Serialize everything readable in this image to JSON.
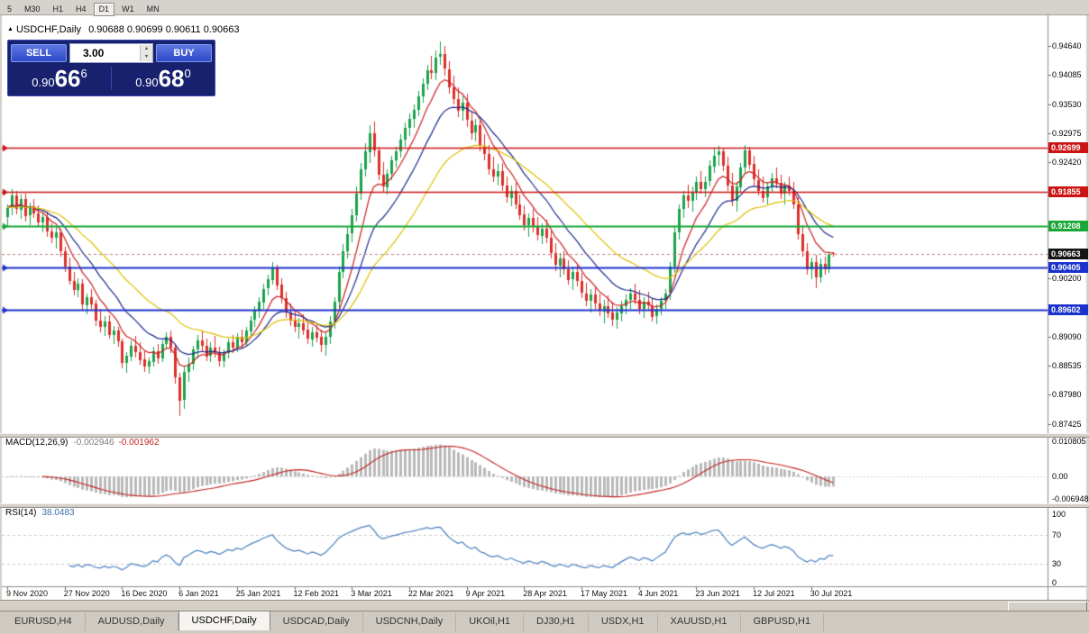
{
  "toolbar": {
    "timeframes": [
      "5",
      "M30",
      "H1",
      "H4",
      "D1",
      "W1",
      "MN"
    ],
    "active": "D1"
  },
  "window": {
    "title_icon": "▲",
    "title_symbol": "USDCHF,Daily",
    "title_ohlc": "0.90688 0.90699 0.90611 0.90663"
  },
  "trade_panel": {
    "sell_label": "SELL",
    "buy_label": "BUY",
    "volume": "3.00",
    "sell_price": {
      "prefix": "0.90",
      "big": "66",
      "pip": "6"
    },
    "buy_price": {
      "prefix": "0.90",
      "big": "68",
      "pip": "0"
    }
  },
  "indicators": {
    "macd": {
      "label": "MACD(12,26,9)",
      "main_value": "-0.002946",
      "signal_value": "-0.001962",
      "axis_labels": [
        "0.010805",
        "0.00",
        "-0.006948"
      ],
      "axis_values": [
        0.010805,
        0,
        -0.006948
      ]
    },
    "rsi": {
      "label": "RSI(14)",
      "value": "38.0483",
      "axis_labels": [
        "100",
        "70",
        "30",
        "0"
      ],
      "axis_values": [
        100,
        70,
        30,
        0
      ],
      "levels": [
        70,
        30
      ]
    }
  },
  "tabs": [
    "EURUSD,H4",
    "AUDUSD,Daily",
    "USDCHF,Daily",
    "USDCAD,Daily",
    "USDCNH,Daily",
    "UKOil,H1",
    "DJ30,H1",
    "USDX,H1",
    "XAUUSD,H1",
    "GBPUSD,H1"
  ],
  "active_tab": "USDCHF,Daily",
  "chart_data": {
    "type": "candlestick",
    "symbol": "USDCHF",
    "timeframe": "Daily",
    "x_labels": [
      "9 Nov 2020",
      "27 Nov 2020",
      "16 Dec 2020",
      "6 Jan 2021",
      "25 Jan 2021",
      "12 Feb 2021",
      "3 Mar 2021",
      "22 Mar 2021",
      "9 Apr 2021",
      "28 Apr 2021",
      "17 May 2021",
      "4 Jun 2021",
      "23 Jun 2021",
      "12 Jul 2021",
      "30 Jul 2021"
    ],
    "label_step": 13,
    "price_axis_labels": [
      {
        "text": "0.94640",
        "value": 0.9464
      },
      {
        "text": "0.94085",
        "value": 0.94085
      },
      {
        "text": "0.93530",
        "value": 0.9353
      },
      {
        "text": "0.92975",
        "value": 0.92975
      },
      {
        "text": "0.92420",
        "value": 0.9242
      },
      {
        "text": "0.91865",
        "value": 0.91865
      },
      {
        "text": "0.91310",
        "value": 0.9131
      },
      {
        "text": "0.90755",
        "value": 0.90755
      },
      {
        "text": "0.90200",
        "value": 0.902
      },
      {
        "text": "0.89645",
        "value": 0.89645
      },
      {
        "text": "0.89090",
        "value": 0.8909
      },
      {
        "text": "0.88535",
        "value": 0.88535
      },
      {
        "text": "0.87980",
        "value": 0.8798
      },
      {
        "text": "0.87425",
        "value": 0.87425
      }
    ],
    "hlines": [
      {
        "label": "0.92699",
        "value": 0.92699,
        "color": "#cc1414",
        "width": 1.4
      },
      {
        "label": "0.91855",
        "value": 0.91855,
        "color": "#cc1414",
        "width": 1.4
      },
      {
        "label": "0.91208",
        "value": 0.91208,
        "color": "#19a838",
        "width": 2
      },
      {
        "label": "0.90405",
        "value": 0.90405,
        "color": "#1c32cc",
        "width": 2
      },
      {
        "label": "0.89602",
        "value": 0.89602,
        "color": "#1c32cc",
        "width": 2
      }
    ],
    "current_price": {
      "label": "0.90663",
      "value": 0.90663,
      "color": "#141414"
    },
    "moving_averages": [
      {
        "period": 8,
        "type": "ema",
        "color": "#cc2020"
      },
      {
        "period": 16,
        "type": "ema",
        "color": "#1c2a8e"
      },
      {
        "period": 32,
        "type": "ema",
        "color": "#dfc000"
      }
    ],
    "colors": {
      "up": "#1da24c",
      "down": "#dd2f2a",
      "macd_hist": "#b9b9b9",
      "macd_signal": "#c32222",
      "rsi": "#4a80c0"
    },
    "candles": [
      [
        0.9138,
        0.9162,
        0.9121,
        0.9155
      ],
      [
        0.9155,
        0.919,
        0.914,
        0.9178
      ],
      [
        0.9178,
        0.9188,
        0.9142,
        0.9152
      ],
      [
        0.9152,
        0.918,
        0.9134,
        0.9172
      ],
      [
        0.9172,
        0.9182,
        0.9128,
        0.914
      ],
      [
        0.914,
        0.9165,
        0.9122,
        0.9158
      ],
      [
        0.9158,
        0.9172,
        0.9135,
        0.9145
      ],
      [
        0.9145,
        0.916,
        0.9118,
        0.9128
      ],
      [
        0.9128,
        0.9145,
        0.9108,
        0.9138
      ],
      [
        0.9138,
        0.9148,
        0.91,
        0.911
      ],
      [
        0.911,
        0.9125,
        0.9088,
        0.9098
      ],
      [
        0.9098,
        0.9118,
        0.9078,
        0.9108
      ],
      [
        0.9108,
        0.9115,
        0.9062,
        0.9072
      ],
      [
        0.9072,
        0.908,
        0.9032,
        0.9042
      ],
      [
        0.9042,
        0.906,
        0.9008,
        0.9015
      ],
      [
        0.9015,
        0.9032,
        0.8988,
        0.8998
      ],
      [
        0.8998,
        0.902,
        0.8985,
        0.901
      ],
      [
        0.901,
        0.9018,
        0.896,
        0.897
      ],
      [
        0.897,
        0.8992,
        0.8952,
        0.8985
      ],
      [
        0.8985,
        0.9,
        0.8962,
        0.8972
      ],
      [
        0.8972,
        0.898,
        0.893,
        0.894
      ],
      [
        0.894,
        0.8962,
        0.8918,
        0.8928
      ],
      [
        0.8928,
        0.8948,
        0.891,
        0.8938
      ],
      [
        0.8938,
        0.895,
        0.8905,
        0.8912
      ],
      [
        0.8912,
        0.893,
        0.8895,
        0.892
      ],
      [
        0.892,
        0.8928,
        0.889,
        0.89
      ],
      [
        0.89,
        0.8905,
        0.8848,
        0.8858
      ],
      [
        0.8858,
        0.888,
        0.884,
        0.8872
      ],
      [
        0.8872,
        0.8902,
        0.8862,
        0.8892
      ],
      [
        0.8892,
        0.891,
        0.887,
        0.888
      ],
      [
        0.888,
        0.8898,
        0.8855,
        0.8865
      ],
      [
        0.8865,
        0.8882,
        0.8842,
        0.8852
      ],
      [
        0.8852,
        0.887,
        0.8838,
        0.8862
      ],
      [
        0.8862,
        0.889,
        0.8852,
        0.8882
      ],
      [
        0.8882,
        0.8895,
        0.8858,
        0.8868
      ],
      [
        0.8868,
        0.8902,
        0.886,
        0.8895
      ],
      [
        0.8895,
        0.8918,
        0.8885,
        0.8908
      ],
      [
        0.8908,
        0.892,
        0.8878,
        0.8888
      ],
      [
        0.8888,
        0.8895,
        0.882,
        0.8832
      ],
      [
        0.8832,
        0.884,
        0.8757,
        0.8788
      ],
      [
        0.8788,
        0.8852,
        0.8772,
        0.8842
      ],
      [
        0.8842,
        0.887,
        0.8822,
        0.8858
      ],
      [
        0.8858,
        0.8892,
        0.8845,
        0.8885
      ],
      [
        0.8885,
        0.8912,
        0.8868,
        0.8902
      ],
      [
        0.8902,
        0.892,
        0.8882,
        0.8892
      ],
      [
        0.8892,
        0.8905,
        0.8862,
        0.8872
      ],
      [
        0.8872,
        0.8898,
        0.886,
        0.8888
      ],
      [
        0.8888,
        0.891,
        0.887,
        0.888
      ],
      [
        0.888,
        0.889,
        0.8852,
        0.8862
      ],
      [
        0.8862,
        0.8885,
        0.885,
        0.8878
      ],
      [
        0.8878,
        0.8905,
        0.8868,
        0.8898
      ],
      [
        0.8898,
        0.8912,
        0.8878,
        0.8888
      ],
      [
        0.8888,
        0.8915,
        0.888,
        0.8908
      ],
      [
        0.8908,
        0.8922,
        0.8888,
        0.8898
      ],
      [
        0.8898,
        0.8928,
        0.889,
        0.892
      ],
      [
        0.892,
        0.8948,
        0.891,
        0.894
      ],
      [
        0.894,
        0.8968,
        0.8928,
        0.8958
      ],
      [
        0.8958,
        0.8985,
        0.8945,
        0.8975
      ],
      [
        0.8975,
        0.901,
        0.8962,
        0.9
      ],
      [
        0.9,
        0.9028,
        0.8988,
        0.9018
      ],
      [
        0.9018,
        0.9052,
        0.9008,
        0.904
      ],
      [
        0.904,
        0.9046,
        0.8998,
        0.9008
      ],
      [
        0.9008,
        0.902,
        0.8972,
        0.8982
      ],
      [
        0.8982,
        0.8995,
        0.8945,
        0.8955
      ],
      [
        0.8955,
        0.8972,
        0.893,
        0.894
      ],
      [
        0.894,
        0.8958,
        0.8918,
        0.8928
      ],
      [
        0.8928,
        0.8945,
        0.8905,
        0.8935
      ],
      [
        0.8935,
        0.8952,
        0.8912,
        0.8922
      ],
      [
        0.8922,
        0.8938,
        0.8895,
        0.8905
      ],
      [
        0.8905,
        0.8928,
        0.889,
        0.8918
      ],
      [
        0.8918,
        0.8935,
        0.8898,
        0.8908
      ],
      [
        0.8908,
        0.8922,
        0.888,
        0.8892
      ],
      [
        0.8892,
        0.8918,
        0.8872,
        0.8908
      ],
      [
        0.8908,
        0.8948,
        0.8895,
        0.8938
      ],
      [
        0.8938,
        0.8985,
        0.8925,
        0.8975
      ],
      [
        0.8975,
        0.9042,
        0.8962,
        0.9032
      ],
      [
        0.9032,
        0.9085,
        0.902,
        0.9072
      ],
      [
        0.9072,
        0.9118,
        0.9058,
        0.9105
      ],
      [
        0.9105,
        0.9152,
        0.909,
        0.914
      ],
      [
        0.914,
        0.9195,
        0.9128,
        0.9182
      ],
      [
        0.9182,
        0.924,
        0.917,
        0.9228
      ],
      [
        0.9228,
        0.9278,
        0.9215,
        0.9262
      ],
      [
        0.9262,
        0.9312,
        0.924,
        0.9298
      ],
      [
        0.9298,
        0.932,
        0.9252,
        0.9265
      ],
      [
        0.9265,
        0.9272,
        0.9208,
        0.9218
      ],
      [
        0.9218,
        0.9242,
        0.9185,
        0.9195
      ],
      [
        0.9195,
        0.9228,
        0.918,
        0.922
      ],
      [
        0.922,
        0.9255,
        0.9208,
        0.9245
      ],
      [
        0.9245,
        0.9272,
        0.9232,
        0.9262
      ],
      [
        0.9262,
        0.9295,
        0.925,
        0.9285
      ],
      [
        0.9285,
        0.9318,
        0.9272,
        0.9308
      ],
      [
        0.9308,
        0.9335,
        0.9292,
        0.9325
      ],
      [
        0.9325,
        0.9352,
        0.9308,
        0.9342
      ],
      [
        0.9342,
        0.9378,
        0.933,
        0.9368
      ],
      [
        0.9368,
        0.9402,
        0.9355,
        0.9392
      ],
      [
        0.9392,
        0.9428,
        0.938,
        0.9418
      ],
      [
        0.9418,
        0.9445,
        0.94,
        0.9412
      ],
      [
        0.9412,
        0.9455,
        0.9398,
        0.9442
      ],
      [
        0.9442,
        0.9472,
        0.9428,
        0.9448
      ],
      [
        0.9448,
        0.9464,
        0.9408,
        0.942
      ],
      [
        0.942,
        0.9435,
        0.9372,
        0.9385
      ],
      [
        0.9385,
        0.9408,
        0.9352,
        0.9362
      ],
      [
        0.9362,
        0.9385,
        0.9328,
        0.934
      ],
      [
        0.934,
        0.9368,
        0.9322,
        0.9355
      ],
      [
        0.9355,
        0.9372,
        0.931,
        0.9322
      ],
      [
        0.9322,
        0.934,
        0.9285,
        0.9298
      ],
      [
        0.9298,
        0.9325,
        0.9282,
        0.9312
      ],
      [
        0.9312,
        0.9322,
        0.9262,
        0.9272
      ],
      [
        0.9272,
        0.9295,
        0.9245,
        0.9258
      ],
      [
        0.9258,
        0.9275,
        0.9218,
        0.9228
      ],
      [
        0.9228,
        0.9252,
        0.9205,
        0.9215
      ],
      [
        0.9215,
        0.9238,
        0.9198,
        0.9225
      ],
      [
        0.9225,
        0.924,
        0.9188,
        0.9198
      ],
      [
        0.9198,
        0.9215,
        0.9165,
        0.9175
      ],
      [
        0.9175,
        0.9198,
        0.9158,
        0.9188
      ],
      [
        0.9188,
        0.9202,
        0.9152,
        0.9162
      ],
      [
        0.9162,
        0.918,
        0.9132,
        0.9142
      ],
      [
        0.9142,
        0.916,
        0.9112,
        0.9122
      ],
      [
        0.9122,
        0.9145,
        0.91,
        0.9135
      ],
      [
        0.9135,
        0.9152,
        0.9108,
        0.9118
      ],
      [
        0.9118,
        0.9138,
        0.9092,
        0.9102
      ],
      [
        0.9102,
        0.9125,
        0.9085,
        0.9115
      ],
      [
        0.9115,
        0.9132,
        0.9088,
        0.9098
      ],
      [
        0.9098,
        0.9112,
        0.9058,
        0.9068
      ],
      [
        0.9068,
        0.9088,
        0.9035,
        0.9045
      ],
      [
        0.9045,
        0.9068,
        0.9022,
        0.9058
      ],
      [
        0.9058,
        0.9072,
        0.9028,
        0.9038
      ],
      [
        0.9038,
        0.9055,
        0.9008,
        0.9018
      ],
      [
        0.9018,
        0.9042,
        0.8998,
        0.9032
      ],
      [
        0.9032,
        0.9048,
        0.9005,
        0.9015
      ],
      [
        0.9015,
        0.903,
        0.8982,
        0.8992
      ],
      [
        0.8992,
        0.9012,
        0.8968,
        0.8978
      ],
      [
        0.8978,
        0.9,
        0.8955,
        0.899
      ],
      [
        0.899,
        0.9005,
        0.8962,
        0.8972
      ],
      [
        0.8972,
        0.8992,
        0.8948,
        0.8958
      ],
      [
        0.8958,
        0.898,
        0.8935,
        0.8968
      ],
      [
        0.8968,
        0.8988,
        0.8945,
        0.8955
      ],
      [
        0.8955,
        0.8975,
        0.893,
        0.8942
      ],
      [
        0.8942,
        0.8965,
        0.8925,
        0.8955
      ],
      [
        0.8955,
        0.8978,
        0.8938,
        0.8968
      ],
      [
        0.8968,
        0.899,
        0.8952,
        0.898
      ],
      [
        0.898,
        0.9002,
        0.8962,
        0.8992
      ],
      [
        0.8992,
        0.901,
        0.897,
        0.898
      ],
      [
        0.898,
        0.8998,
        0.8952,
        0.8962
      ],
      [
        0.8962,
        0.8985,
        0.8945,
        0.8975
      ],
      [
        0.8975,
        0.8995,
        0.8958,
        0.8968
      ],
      [
        0.8968,
        0.8982,
        0.8938,
        0.8948
      ],
      [
        0.8948,
        0.897,
        0.8932,
        0.8962
      ],
      [
        0.8962,
        0.8985,
        0.895,
        0.8978
      ],
      [
        0.8978,
        0.9,
        0.8962,
        0.8992
      ],
      [
        0.8992,
        0.9052,
        0.898,
        0.9042
      ],
      [
        0.9042,
        0.912,
        0.903,
        0.9108
      ],
      [
        0.9108,
        0.9162,
        0.9095,
        0.9152
      ],
      [
        0.9152,
        0.9188,
        0.9135,
        0.9178
      ],
      [
        0.9178,
        0.92,
        0.9155,
        0.9168
      ],
      [
        0.9168,
        0.9195,
        0.9148,
        0.9185
      ],
      [
        0.9185,
        0.9215,
        0.917,
        0.9205
      ],
      [
        0.9205,
        0.9225,
        0.9182,
        0.9192
      ],
      [
        0.9192,
        0.9215,
        0.9175,
        0.9205
      ],
      [
        0.9205,
        0.9245,
        0.9195,
        0.9235
      ],
      [
        0.9235,
        0.9268,
        0.9222,
        0.9255
      ],
      [
        0.9255,
        0.9273,
        0.9235,
        0.9262
      ],
      [
        0.9262,
        0.927,
        0.9225,
        0.9235
      ],
      [
        0.9235,
        0.9252,
        0.9188,
        0.9198
      ],
      [
        0.9198,
        0.9222,
        0.9158,
        0.9168
      ],
      [
        0.9168,
        0.9205,
        0.9148,
        0.9195
      ],
      [
        0.9195,
        0.924,
        0.9185,
        0.9232
      ],
      [
        0.9232,
        0.9275,
        0.9222,
        0.9265
      ],
      [
        0.9265,
        0.9272,
        0.9228,
        0.9238
      ],
      [
        0.9238,
        0.9255,
        0.9198,
        0.9208
      ],
      [
        0.9208,
        0.9228,
        0.9178,
        0.9188
      ],
      [
        0.9188,
        0.9215,
        0.9165,
        0.9175
      ],
      [
        0.9175,
        0.9205,
        0.9162,
        0.9195
      ],
      [
        0.9195,
        0.9222,
        0.9185,
        0.9212
      ],
      [
        0.9212,
        0.9232,
        0.9192,
        0.9202
      ],
      [
        0.9202,
        0.9218,
        0.9172,
        0.9182
      ],
      [
        0.9182,
        0.9205,
        0.9162,
        0.9198
      ],
      [
        0.9198,
        0.9215,
        0.9178,
        0.9188
      ],
      [
        0.9188,
        0.9205,
        0.9152,
        0.9162
      ],
      [
        0.9162,
        0.9175,
        0.9095,
        0.9105
      ],
      [
        0.9105,
        0.9122,
        0.9062,
        0.9072
      ],
      [
        0.9072,
        0.9088,
        0.9028,
        0.9038
      ],
      [
        0.9038,
        0.906,
        0.9018,
        0.9052
      ],
      [
        0.9052,
        0.9065,
        0.9002,
        0.9022
      ],
      [
        0.9022,
        0.9058,
        0.9012,
        0.9048
      ],
      [
        0.9048,
        0.9062,
        0.9028,
        0.9038
      ],
      [
        0.9038,
        0.9072,
        0.903,
        0.9066
      ],
      [
        0.90688,
        0.90699,
        0.90611,
        0.90663
      ]
    ]
  }
}
